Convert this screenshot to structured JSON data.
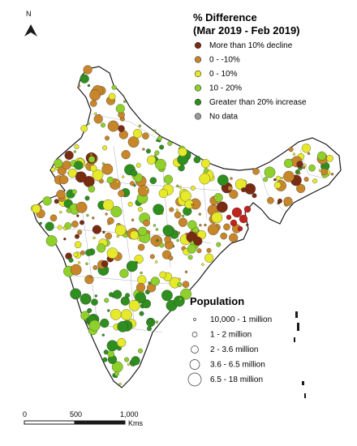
{
  "north_arrow": {
    "label": "N"
  },
  "difference_legend": {
    "title_line1": "% Difference",
    "title_line2": "(Mar 2019 - Feb 2019)",
    "items": [
      {
        "label": "More than 10% decline",
        "color": "#7a2b12"
      },
      {
        "label": "0 - -10%",
        "color": "#c8862a"
      },
      {
        "label": "0 - 10%",
        "color": "#e6ea2a"
      },
      {
        "label": "10 - 20%",
        "color": "#8fd12a"
      },
      {
        "label": "Greater than 20% increase",
        "color": "#2e8f1e"
      },
      {
        "label": "No data",
        "color": "#9a9a9a"
      }
    ]
  },
  "population_legend": {
    "title": "Population",
    "items": [
      {
        "label": "10,000 - 1 million"
      },
      {
        "label": "1 - 2 million"
      },
      {
        "label": "2  - 3.6 million"
      },
      {
        "label": "3.6  - 6.5 million"
      },
      {
        "label": "6.5  - 18 million"
      }
    ]
  },
  "scale_bar": {
    "ticks": [
      "0",
      "500",
      "1,000"
    ],
    "unit": "Kms"
  },
  "colors": {
    "decline": "#c0231b",
    "outline": "#222222",
    "district_lines": "#9a9a9a"
  }
}
